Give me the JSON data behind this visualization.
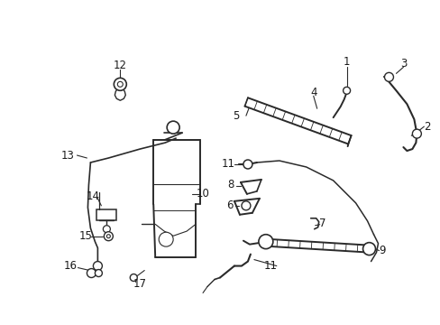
{
  "bg_color": "#ffffff",
  "line_color": "#2a2a2a",
  "text_color": "#1a1a1a",
  "fig_width": 4.89,
  "fig_height": 3.6,
  "dpi": 100,
  "font_size": 8.5,
  "lw": 1.1
}
